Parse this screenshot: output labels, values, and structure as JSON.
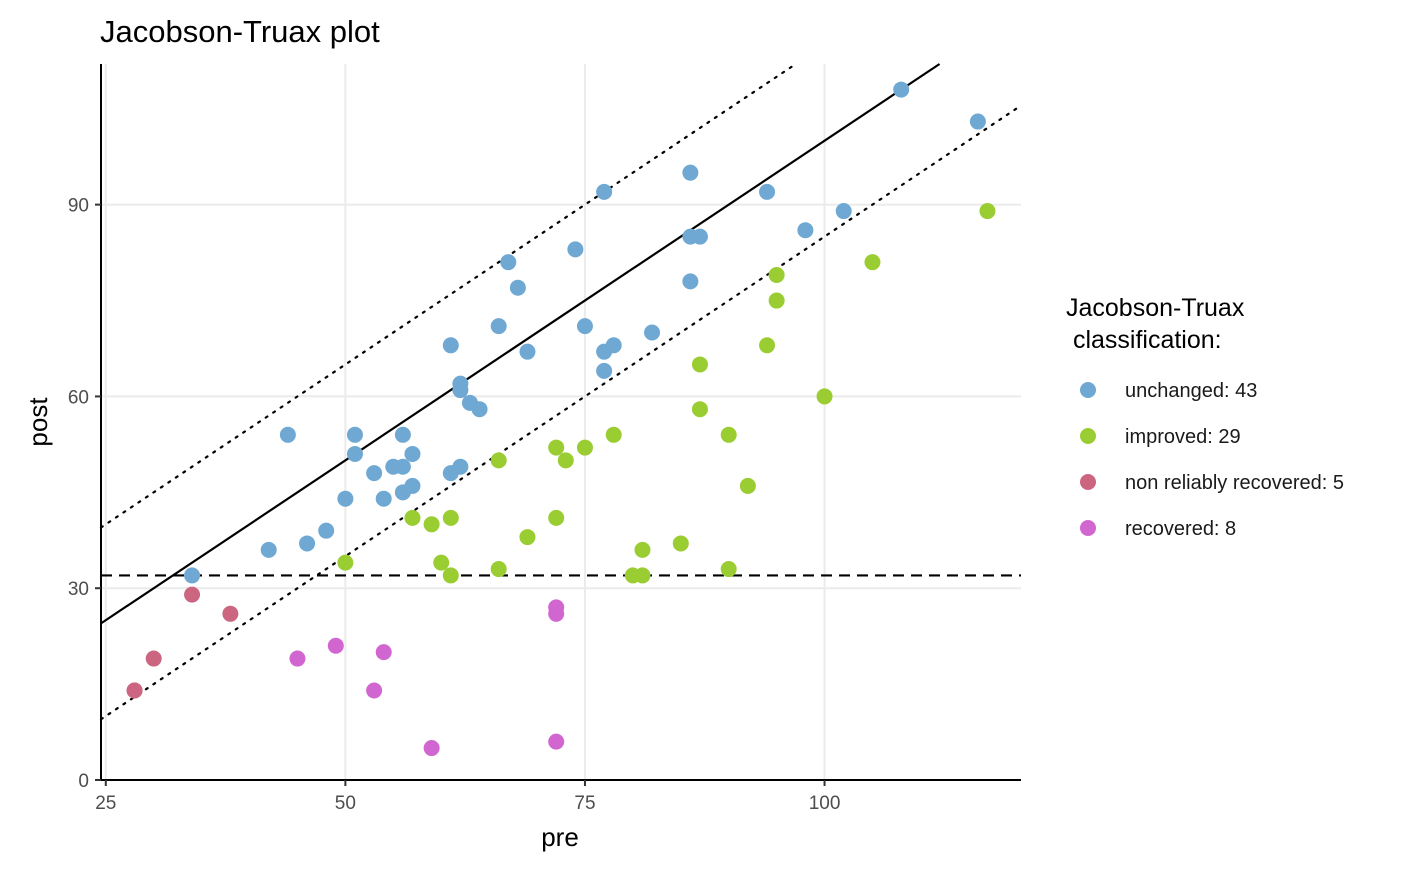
{
  "chart_data": {
    "type": "scatter",
    "title": "Jacobson-Truax plot",
    "xlabel": "pre",
    "ylabel": "post",
    "xlim": [
      24.5,
      120.5
    ],
    "ylim": [
      0,
      112
    ],
    "xticks": [
      25,
      50,
      75,
      100
    ],
    "yticks": [
      0,
      30,
      60,
      90
    ],
    "grid": true,
    "legend": {
      "title_lines": [
        "Jacobson-Truax",
        " classification:"
      ],
      "position": "right"
    },
    "reference_lines": [
      {
        "kind": "horizontal",
        "style": "dashed",
        "y": 32
      },
      {
        "kind": "identity",
        "style": "solid",
        "slope": 1,
        "intercept": 0
      },
      {
        "kind": "upper-band",
        "style": "dotted",
        "slope": 1,
        "intercept": 15
      },
      {
        "kind": "lower-band",
        "style": "dotted",
        "slope": 1,
        "intercept": -15
      }
    ],
    "series": [
      {
        "name": "unchanged: 43",
        "color": "#6FA8D2",
        "points": [
          [
            34,
            32
          ],
          [
            42,
            36
          ],
          [
            44,
            54
          ],
          [
            46,
            37
          ],
          [
            48,
            39
          ],
          [
            50,
            44
          ],
          [
            51,
            54
          ],
          [
            51,
            51
          ],
          [
            53,
            48
          ],
          [
            54,
            44
          ],
          [
            55,
            49
          ],
          [
            56,
            54
          ],
          [
            56,
            49
          ],
          [
            56,
            45
          ],
          [
            57,
            51
          ],
          [
            57,
            46
          ],
          [
            61,
            68
          ],
          [
            61,
            48
          ],
          [
            62,
            62
          ],
          [
            62,
            61
          ],
          [
            62,
            49
          ],
          [
            63,
            59
          ],
          [
            64,
            58
          ],
          [
            66,
            71
          ],
          [
            67,
            81
          ],
          [
            68,
            77
          ],
          [
            69,
            67
          ],
          [
            74,
            83
          ],
          [
            75,
            71
          ],
          [
            77,
            92
          ],
          [
            77,
            67
          ],
          [
            77,
            64
          ],
          [
            78,
            68
          ],
          [
            82,
            70
          ],
          [
            86,
            95
          ],
          [
            86,
            85
          ],
          [
            86,
            78
          ],
          [
            87,
            85
          ],
          [
            94,
            92
          ],
          [
            98,
            86
          ],
          [
            102,
            89
          ],
          [
            108,
            108
          ],
          [
            116,
            103
          ]
        ]
      },
      {
        "name": "improved: 29",
        "color": "#9ACD32",
        "points": [
          [
            50,
            34
          ],
          [
            57,
            41
          ],
          [
            59,
            40
          ],
          [
            60,
            34
          ],
          [
            61,
            41
          ],
          [
            61,
            32
          ],
          [
            66,
            50
          ],
          [
            66,
            33
          ],
          [
            69,
            38
          ],
          [
            72,
            52
          ],
          [
            72,
            41
          ],
          [
            73,
            50
          ],
          [
            75,
            52
          ],
          [
            78,
            54
          ],
          [
            80,
            32
          ],
          [
            81,
            36
          ],
          [
            81,
            32
          ],
          [
            85,
            37
          ],
          [
            87,
            65
          ],
          [
            87,
            58
          ],
          [
            90,
            54
          ],
          [
            90,
            33
          ],
          [
            92,
            46
          ],
          [
            94,
            68
          ],
          [
            95,
            79
          ],
          [
            95,
            75
          ],
          [
            100,
            60
          ],
          [
            105,
            81
          ],
          [
            117,
            89
          ]
        ]
      },
      {
        "name": "non reliably recovered: 5",
        "color": "#CC6680",
        "points": [
          [
            28,
            14
          ],
          [
            30,
            19
          ],
          [
            34,
            29
          ],
          [
            38,
            26
          ],
          [
            28,
            14
          ]
        ]
      },
      {
        "name": "recovered: 8",
        "color": "#D166D1",
        "points": [
          [
            45,
            19
          ],
          [
            49,
            21
          ],
          [
            53,
            14
          ],
          [
            54,
            20
          ],
          [
            59,
            5
          ],
          [
            72,
            27
          ],
          [
            72,
            26
          ],
          [
            72,
            6
          ]
        ]
      }
    ]
  }
}
